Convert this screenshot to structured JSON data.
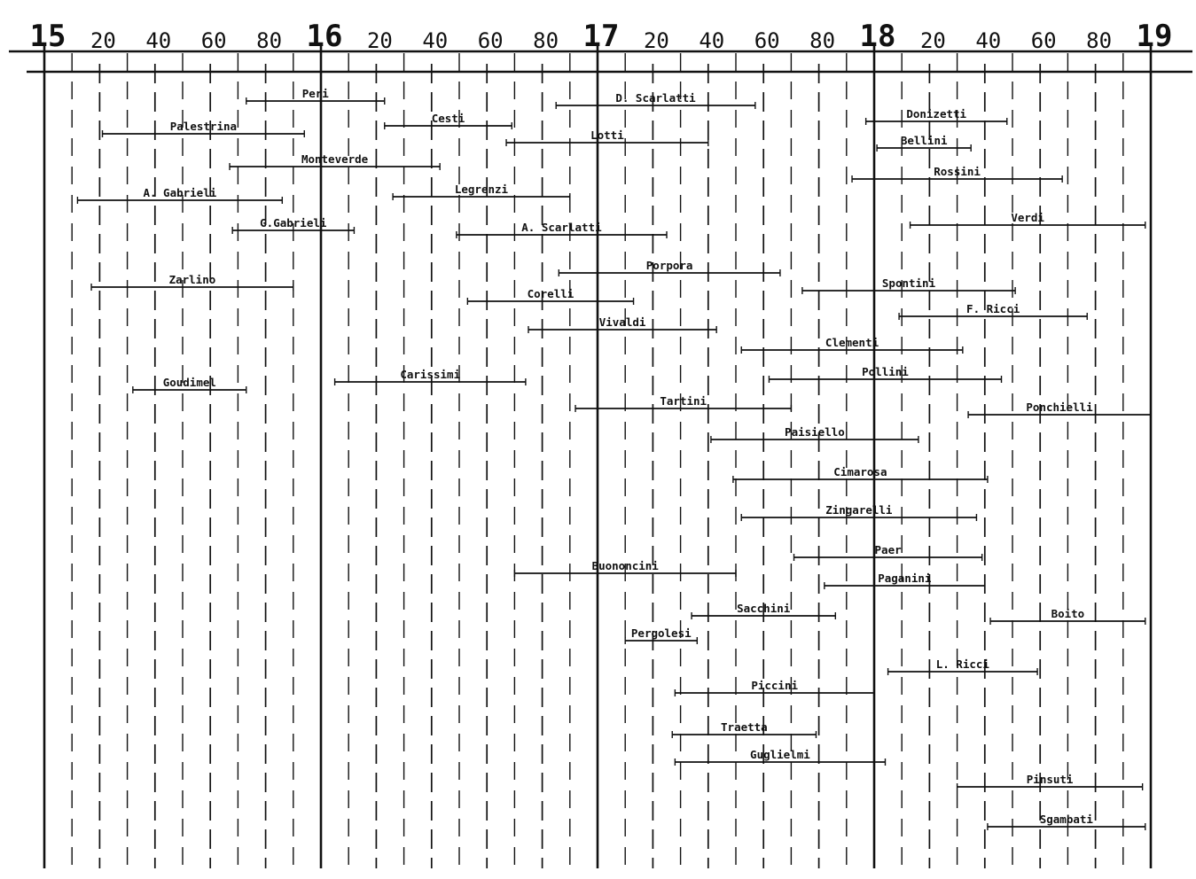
{
  "chart_data": {
    "type": "timeline",
    "title": "",
    "xlabel": "",
    "ylabel": "",
    "xlim": [
      1500,
      1900
    ],
    "grid": true,
    "tick_labels": [
      {
        "year": 1500,
        "label": "15"
      },
      {
        "year": 1520,
        "label": "20"
      },
      {
        "year": 1540,
        "label": "40"
      },
      {
        "year": 1560,
        "label": "60"
      },
      {
        "year": 1580,
        "label": "80"
      },
      {
        "year": 1600,
        "label": "16"
      },
      {
        "year": 1620,
        "label": "20"
      },
      {
        "year": 1640,
        "label": "40"
      },
      {
        "year": 1660,
        "label": "60"
      },
      {
        "year": 1680,
        "label": "80"
      },
      {
        "year": 1700,
        "label": "17"
      },
      {
        "year": 1720,
        "label": "20"
      },
      {
        "year": 1740,
        "label": "40"
      },
      {
        "year": 1760,
        "label": "60"
      },
      {
        "year": 1780,
        "label": "80"
      },
      {
        "year": 1800,
        "label": "18"
      },
      {
        "year": 1820,
        "label": "20"
      },
      {
        "year": 1840,
        "label": "40"
      },
      {
        "year": 1860,
        "label": "60"
      },
      {
        "year": 1880,
        "label": "80"
      },
      {
        "year": 1900,
        "label": "19"
      }
    ],
    "composers": [
      {
        "name": "Peri",
        "start": 1573,
        "end": 1623
      },
      {
        "name": "Palestrina",
        "start": 1521,
        "end": 1594
      },
      {
        "name": "Monteverde",
        "start": 1567,
        "end": 1643
      },
      {
        "name": "A. Gabrieli",
        "start": 1512,
        "end": 1586
      },
      {
        "name": "G.Gabrieli",
        "start": 1568,
        "end": 1612
      },
      {
        "name": "Zarlino",
        "start": 1517,
        "end": 1590
      },
      {
        "name": "Goudimel",
        "start": 1532,
        "end": 1573
      },
      {
        "name": "Cesti",
        "start": 1623,
        "end": 1669
      },
      {
        "name": "Legrenzi",
        "start": 1626,
        "end": 1690
      },
      {
        "name": "Carissimi",
        "start": 1605,
        "end": 1674
      },
      {
        "name": "D. Scarlatti",
        "start": 1685,
        "end": 1757
      },
      {
        "name": "Lotti",
        "start": 1667,
        "end": 1740
      },
      {
        "name": "A. Scarlatti",
        "start": 1649,
        "end": 1725
      },
      {
        "name": "Porpora",
        "start": 1686,
        "end": 1766
      },
      {
        "name": "Corelli",
        "start": 1653,
        "end": 1713
      },
      {
        "name": "Vivaldi",
        "start": 1675,
        "end": 1743
      },
      {
        "name": "Tartini",
        "start": 1692,
        "end": 1770
      },
      {
        "name": "Paisiello",
        "start": 1741,
        "end": 1816
      },
      {
        "name": "Cimarosa",
        "start": 1749,
        "end": 1841
      },
      {
        "name": "Zingarelli",
        "start": 1752,
        "end": 1837
      },
      {
        "name": "Paer",
        "start": 1771,
        "end": 1839
      },
      {
        "name": "Paganini",
        "start": 1782,
        "end": 1840
      },
      {
        "name": "Buononcini",
        "start": 1670,
        "end": 1750
      },
      {
        "name": "Sacchini",
        "start": 1734,
        "end": 1786
      },
      {
        "name": "Pergolesi",
        "start": 1710,
        "end": 1736
      },
      {
        "name": "Piccini",
        "start": 1728,
        "end": 1800
      },
      {
        "name": "Traetta",
        "start": 1727,
        "end": 1779
      },
      {
        "name": "Guglielmi",
        "start": 1728,
        "end": 1804
      },
      {
        "name": "Clementi",
        "start": 1752,
        "end": 1832
      },
      {
        "name": "Pollini",
        "start": 1762,
        "end": 1846
      },
      {
        "name": "Spontini",
        "start": 1774,
        "end": 1851
      },
      {
        "name": "F. Ricci",
        "start": 1809,
        "end": 1877
      },
      {
        "name": "Donizetti",
        "start": 1797,
        "end": 1848
      },
      {
        "name": "Bellini",
        "start": 1801,
        "end": 1835
      },
      {
        "name": "Rossini",
        "start": 1792,
        "end": 1868
      },
      {
        "name": "Verdi",
        "start": 1813,
        "end": 1898
      },
      {
        "name": "Ponchielli",
        "start": 1834,
        "end": 1900
      },
      {
        "name": "Boito",
        "start": 1842,
        "end": 1898
      },
      {
        "name": "L. Ricci",
        "start": 1805,
        "end": 1859
      },
      {
        "name": "Pinsuti",
        "start": 1830,
        "end": 1897
      },
      {
        "name": "Sgambati",
        "start": 1841,
        "end": 1898
      }
    ]
  }
}
